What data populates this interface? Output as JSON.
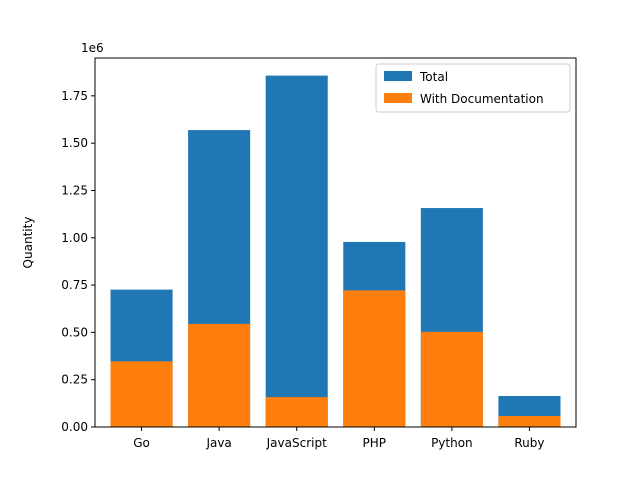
{
  "chart_data": {
    "type": "bar",
    "categories": [
      "Go",
      "Java",
      "JavaScript",
      "PHP",
      "Python",
      "Ruby"
    ],
    "series": [
      {
        "name": "Total",
        "values": [
          726000,
          1569000,
          1857000,
          978000,
          1157000,
          164000
        ],
        "color": "#1f77b4"
      },
      {
        "name": "With Documentation",
        "values": [
          347000,
          545000,
          158000,
          722000,
          503000,
          58000
        ],
        "color": "#ff7f0e"
      }
    ],
    "overlay": true,
    "ylabel": "Quantity",
    "xlabel": "",
    "y_multiplier": "1e6",
    "ylim": [
      0,
      1950000
    ],
    "yticks": [
      0,
      250000,
      500000,
      750000,
      1000000,
      1250000,
      1500000,
      1750000
    ],
    "ytick_labels": [
      "0.00",
      "0.25",
      "0.50",
      "0.75",
      "1.00",
      "1.25",
      "1.50",
      "1.75"
    ],
    "legend_position": "top-right",
    "grid": false
  }
}
